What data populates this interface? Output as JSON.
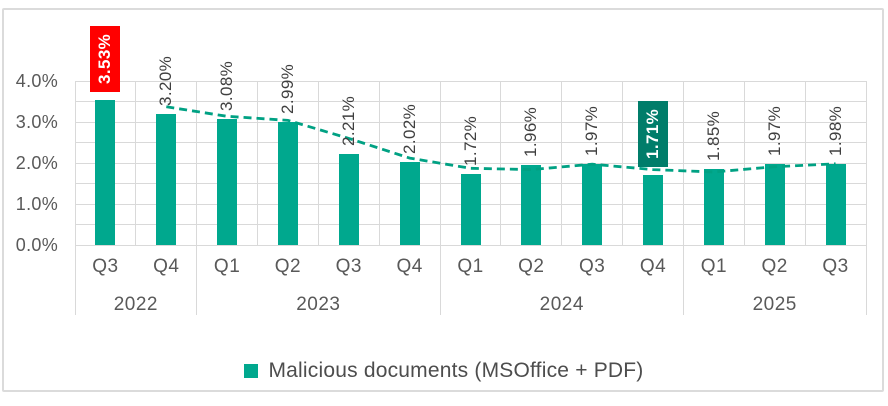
{
  "chart_data": {
    "type": "bar",
    "title": "",
    "unit": "%",
    "categories": [
      "Q3 2022",
      "Q4 2022",
      "Q1 2023",
      "Q2 2023",
      "Q3 2023",
      "Q4 2023",
      "Q1 2024",
      "Q2 2024",
      "Q3 2024",
      "Q4 2024",
      "Q1 2025",
      "Q2 2025",
      "Q3 2025"
    ],
    "quarter_labels": [
      "Q3",
      "Q4",
      "Q1",
      "Q2",
      "Q3",
      "Q4",
      "Q1",
      "Q2",
      "Q3",
      "Q4",
      "Q1",
      "Q2",
      "Q3"
    ],
    "year_groups": [
      {
        "label": "2022",
        "span": 2
      },
      {
        "label": "2023",
        "span": 4
      },
      {
        "label": "2024",
        "span": 4
      },
      {
        "label": "2025",
        "span": 3
      }
    ],
    "values": [
      3.53,
      3.2,
      3.08,
      2.99,
      2.21,
      2.02,
      1.72,
      1.96,
      1.97,
      1.71,
      1.85,
      1.97,
      1.98
    ],
    "value_labels": [
      "3.53%",
      "3.20%",
      "3.08%",
      "2.99%",
      "2.21%",
      "2.02%",
      "1.72%",
      "1.96%",
      "1.97%",
      "1.71%",
      "1.85%",
      "1.97%",
      "1.98%"
    ],
    "highlighted_labels": [
      {
        "index": 0,
        "background": "#FF0000",
        "text_color": "#FFFFFF"
      },
      {
        "index": 9,
        "background": "#007D6A",
        "text_color": "#FFFFFF"
      }
    ],
    "y_axis": {
      "min": 0,
      "max": 4,
      "tick_labels": [
        "0.0%",
        "1.0%",
        "2.0%",
        "3.0%",
        "4.0%"
      ],
      "minor_grid_step": 0.5
    },
    "grid": true,
    "trendline": {
      "kind": "moving-average",
      "period": 2,
      "start_index": 1,
      "dashed": true,
      "color": "#00A183",
      "values": [
        3.37,
        3.14,
        3.04,
        2.6,
        2.12,
        1.87,
        1.84,
        1.97,
        1.84,
        1.78,
        1.91,
        1.98
      ]
    },
    "legend": [
      {
        "label": "Malicious documents (MSOffice + PDF)",
        "marker": "square",
        "color": "#00A88E"
      }
    ],
    "colors": {
      "bar": "#00A88E",
      "grid": "#D9D9D9",
      "axis_text": "#595959",
      "label_text": "#3F3F3F",
      "legend_text": "#4D4D4D",
      "frame_border": "#DBDBDB",
      "background": "#FFFFFF"
    }
  }
}
